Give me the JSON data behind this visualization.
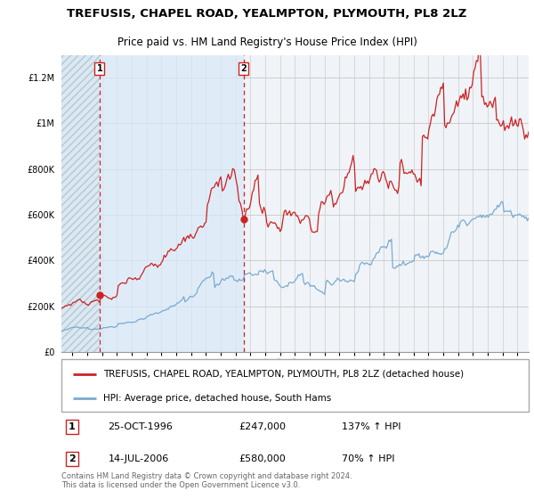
{
  "title": "TREFUSIS, CHAPEL ROAD, YEALMPTON, PLYMOUTH, PL8 2LZ",
  "subtitle": "Price paid vs. HM Land Registry's House Price Index (HPI)",
  "ylim": [
    0,
    1300000
  ],
  "yticks": [
    0,
    200000,
    400000,
    600000,
    800000,
    1000000,
    1200000
  ],
  "ytick_labels": [
    "£0",
    "£200K",
    "£400K",
    "£600K",
    "£800K",
    "£1M",
    "£1.2M"
  ],
  "xlim_start": 1994.25,
  "xlim_end": 2025.75,
  "sale1_x": 1996.82,
  "sale1_y": 247000,
  "sale1_label": "1",
  "sale1_date": "25-OCT-1996",
  "sale1_hpi": "137% ↑ HPI",
  "sale2_x": 2006.54,
  "sale2_y": 580000,
  "sale2_label": "2",
  "sale2_date": "14-JUL-2006",
  "sale2_hpi": "70% ↑ HPI",
  "property_color": "#cc2222",
  "hpi_color": "#7aaad0",
  "vline_color": "#cc2222",
  "hatch_color": "#c8d8e8",
  "shade_color": "#ddeeff",
  "background_color": "#ffffff",
  "plot_bg_color": "#f0f4f8",
  "grid_color": "#cccccc",
  "legend_label_property": "TREFUSIS, CHAPEL ROAD, YEALMPTON, PLYMOUTH, PL8 2LZ (detached house)",
  "legend_label_hpi": "HPI: Average price, detached house, South Hams",
  "footnote": "Contains HM Land Registry data © Crown copyright and database right 2024.\nThis data is licensed under the Open Government Licence v3.0.",
  "title_fontsize": 9.5,
  "subtitle_fontsize": 8.5,
  "tick_fontsize": 7,
  "legend_fontsize": 8
}
